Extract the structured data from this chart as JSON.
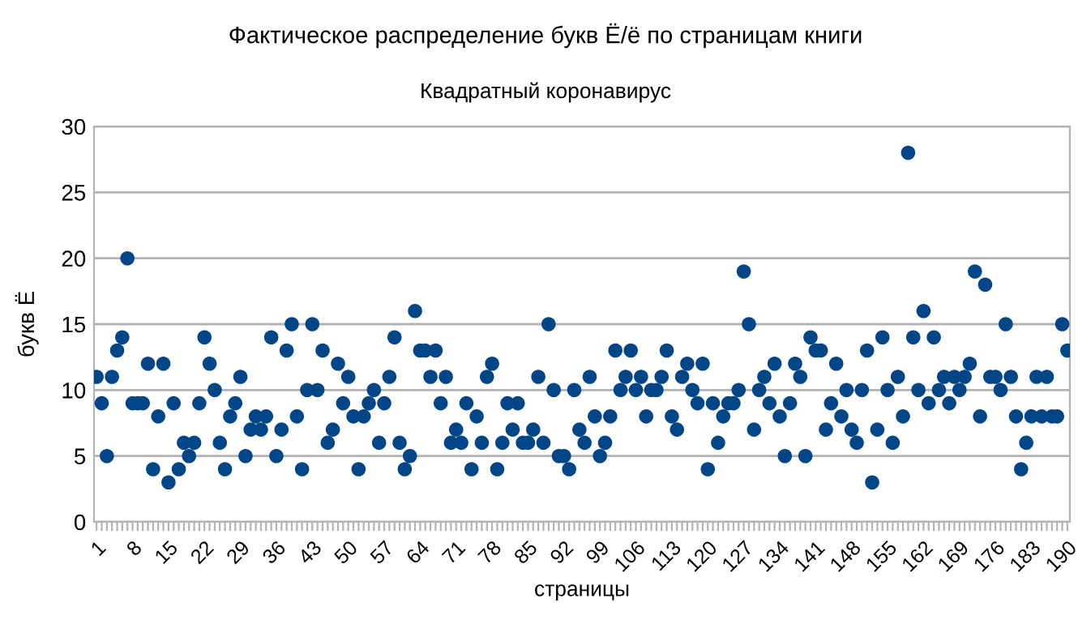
{
  "chart_data": {
    "type": "scatter",
    "title": "Фактическое распределение букв Ё/ё по страницам книги",
    "subtitle": "Квадратный коронавирус",
    "xlabel": "страницы",
    "ylabel": "букв Ё",
    "categories": [
      "1",
      null,
      null,
      null,
      null,
      null,
      null,
      "8",
      null,
      null,
      null,
      null,
      null,
      null,
      "15",
      null,
      null,
      null,
      null,
      null,
      null,
      "22",
      null,
      null,
      null,
      null,
      null,
      null,
      "29",
      null,
      null,
      null,
      null,
      null,
      null,
      "36",
      null,
      null,
      null,
      null,
      null,
      null,
      "43",
      null,
      null,
      null,
      null,
      null,
      null,
      "50",
      null,
      null,
      null,
      null,
      null,
      null,
      "57",
      null,
      null,
      null,
      null,
      null,
      null,
      "64",
      null,
      null,
      null,
      null,
      null,
      null,
      "71",
      null,
      null,
      null,
      null,
      null,
      null,
      "78",
      null,
      null,
      null,
      null,
      null,
      null,
      "85",
      null,
      null,
      null,
      null,
      null,
      null,
      "92",
      null,
      null,
      null,
      null,
      null,
      null,
      "99",
      null,
      null,
      null,
      null,
      null,
      null,
      "106",
      null,
      null,
      null,
      null,
      null,
      null,
      "113",
      null,
      null,
      null,
      null,
      null,
      null,
      "120",
      null,
      null,
      null,
      null,
      null,
      null,
      "127",
      null,
      null,
      null,
      null,
      null,
      null,
      "134",
      null,
      null,
      null,
      null,
      null,
      null,
      "141",
      null,
      null,
      null,
      null,
      null,
      null,
      "148",
      null,
      null,
      null,
      null,
      null,
      null,
      "155",
      null,
      null,
      null,
      null,
      null,
      null,
      "162",
      null,
      null,
      null,
      null,
      null,
      null,
      "169",
      null,
      null,
      null,
      null,
      null,
      null,
      "176",
      null,
      null,
      null,
      null,
      null,
      null,
      "183",
      null,
      null,
      null,
      null,
      null,
      null,
      "190"
    ],
    "series": [
      {
        "color": "#004586",
        "values": [
          11,
          9,
          5,
          11,
          13,
          14,
          20,
          9,
          9,
          9,
          12,
          4,
          8,
          12,
          3,
          9,
          4,
          6,
          5,
          6,
          9,
          14,
          12,
          10,
          6,
          4,
          8,
          9,
          11,
          5,
          7,
          8,
          7,
          8,
          14,
          5,
          7,
          13,
          15,
          8,
          4,
          10,
          15,
          10,
          13,
          6,
          7,
          12,
          9,
          11,
          8,
          4,
          8,
          9,
          10,
          6,
          9,
          11,
          14,
          6,
          4,
          5,
          16,
          13,
          13,
          11,
          13,
          9,
          11,
          6,
          7,
          6,
          9,
          4,
          8,
          6,
          11,
          12,
          4,
          6,
          9,
          7,
          9,
          6,
          6,
          7,
          11,
          6,
          15,
          10,
          5,
          5,
          4,
          10,
          7,
          6,
          11,
          8,
          5,
          6,
          8,
          13,
          10,
          11,
          13,
          10,
          11,
          8,
          10,
          10,
          11,
          13,
          8,
          7,
          11,
          12,
          10,
          9,
          12,
          4,
          9,
          6,
          8,
          9,
          9,
          10,
          19,
          15,
          7,
          10,
          11,
          9,
          12,
          8,
          5,
          9,
          12,
          11,
          5,
          14,
          13,
          13,
          7,
          9,
          12,
          8,
          10,
          7,
          6,
          10,
          13,
          3,
          7,
          14,
          10,
          6,
          11,
          8,
          28,
          14,
          10,
          16,
          9,
          14,
          10,
          11,
          9,
          11,
          10,
          11,
          12,
          19,
          8,
          18,
          11,
          11,
          10,
          15,
          11,
          8,
          4,
          6,
          8,
          11,
          8,
          11,
          8,
          8,
          15,
          13
        ]
      }
    ],
    "ylim": [
      0,
      30
    ],
    "yticks": [
      0,
      5,
      10,
      15,
      20,
      25,
      30
    ],
    "grid": "y",
    "marker": "circle"
  }
}
